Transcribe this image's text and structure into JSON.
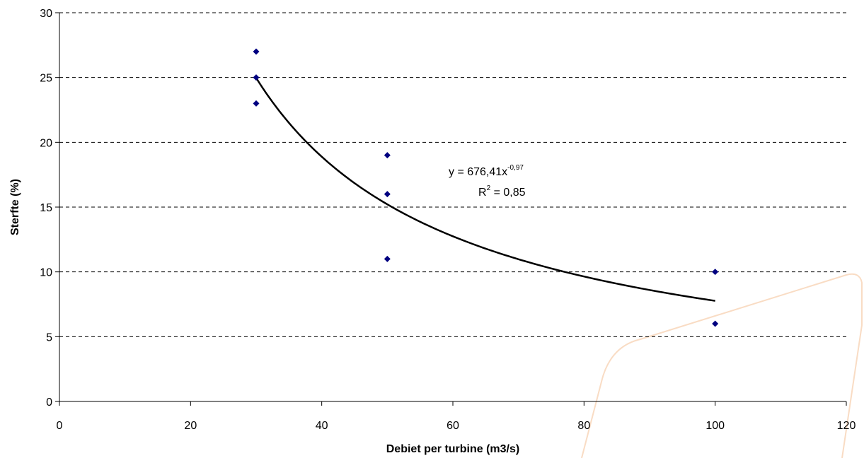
{
  "chart_data": {
    "type": "scatter",
    "title": "",
    "xlabel": "Debiet per turbine (m3/s)",
    "ylabel": "Sterfte (%)",
    "xlim": [
      0,
      120
    ],
    "ylim": [
      0,
      30
    ],
    "x_ticks": [
      "0",
      "20",
      "40",
      "60",
      "80",
      "100",
      "120"
    ],
    "y_ticks": [
      "0",
      "5",
      "10",
      "15",
      "20",
      "25",
      "30"
    ],
    "grid": "horizontal dashed",
    "marker_color": "#000080",
    "series": [
      {
        "points": [
          {
            "x": 30,
            "y": 27
          },
          {
            "x": 30,
            "y": 25
          },
          {
            "x": 30,
            "y": 23
          },
          {
            "x": 50,
            "y": 19
          },
          {
            "x": 50,
            "y": 16
          },
          {
            "x": 50,
            "y": 11
          },
          {
            "x": 100,
            "y": 10
          },
          {
            "x": 100,
            "y": 6
          }
        ]
      }
    ],
    "trendline": {
      "type": "power",
      "coefficient": 676.41,
      "exponent": -0.97,
      "x_range": [
        30,
        100
      ],
      "equation_base": "y = 676,41x",
      "equation_exponent": "-0,97",
      "r2_base": "R",
      "r2_exponent": "2",
      "r2_value": " = 0,85"
    }
  }
}
